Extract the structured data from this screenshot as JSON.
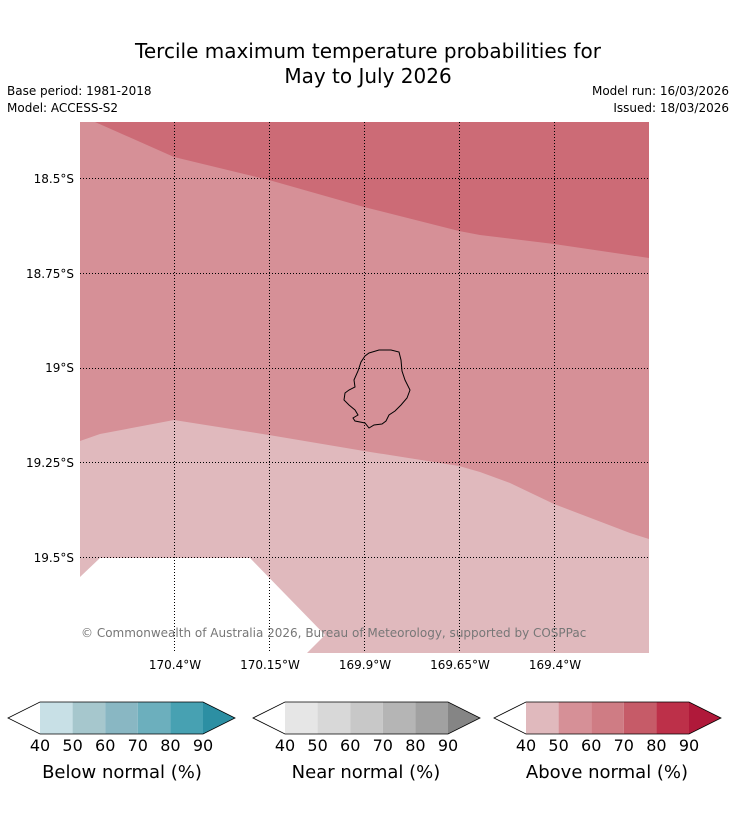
{
  "title": {
    "line1": "Tercile maximum temperature probabilities for",
    "line2": "May to July 2026"
  },
  "meta_left": {
    "base_period": "Base period: 1981-2018",
    "model": "Model: ACCESS-S2"
  },
  "meta_right": {
    "model_run": "Model run: 16/03/2026",
    "issued": "Issued: 18/03/2026"
  },
  "map": {
    "latitude_labels": [
      "18.5°S",
      "18.75°S",
      "19°S",
      "19.25°S",
      "19.5°S"
    ],
    "longitude_labels": [
      "170.4°W",
      "170.15°W",
      "169.9°W",
      "169.65°W",
      "169.4°W"
    ],
    "copyright": "© Commonwealth of Australia 2026, Bureau of Meteorology, supported by COSPPac",
    "zones": [
      {
        "name": "above-normal-60-70",
        "color": "#cc6b76"
      },
      {
        "name": "above-normal-50-60",
        "color": "#d69097"
      },
      {
        "name": "above-normal-40-50",
        "color": "#e0b9bd"
      },
      {
        "name": "no-data",
        "color": "#ffffff"
      }
    ]
  },
  "colorbars": [
    {
      "label": "Below normal (%)",
      "ticks": [
        "40",
        "50",
        "60",
        "70",
        "80",
        "90"
      ],
      "colors": [
        "#c8e0e6",
        "#a6c7cd",
        "#89b7c3",
        "#6cafbd",
        "#47a1b2"
      ],
      "low_extend_color": "#ffffff",
      "high_extend_color": "#2c8fa3"
    },
    {
      "label": "Near normal (%)",
      "ticks": [
        "40",
        "50",
        "60",
        "70",
        "80",
        "90"
      ],
      "colors": [
        "#e6e6e6",
        "#d8d8d8",
        "#c8c8c8",
        "#b5b5b5",
        "#a1a1a1"
      ],
      "low_extend_color": "#ffffff",
      "high_extend_color": "#858585"
    },
    {
      "label": "Above normal (%)",
      "ticks": [
        "40",
        "50",
        "60",
        "70",
        "80",
        "90"
      ],
      "colors": [
        "#e0b9bd",
        "#d69097",
        "#cf7c84",
        "#c65b68",
        "#bd3049"
      ],
      "low_extend_color": "#ffffff",
      "high_extend_color": "#b0193a"
    }
  ]
}
